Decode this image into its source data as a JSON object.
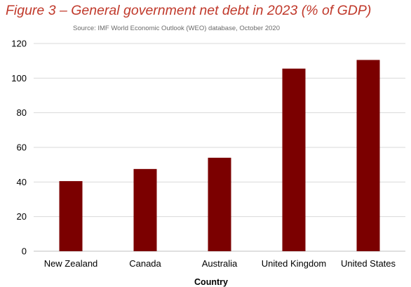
{
  "colors": {
    "title": "#c0392b",
    "bar": "#7b0000",
    "gridline": "#d9d9d9",
    "axis": "#bfbfbf"
  },
  "figure": {
    "title": "Figure 3 – General government net debt in 2023 (% of GDP)",
    "source": "Source: IMF World Economic Outlook (WEO) database, October 2020"
  },
  "chart_data": {
    "type": "bar",
    "categories": [
      "New Zealand",
      "Canada",
      "Australia",
      "United Kingdom",
      "United States"
    ],
    "values": [
      40.5,
      47.5,
      54,
      105.5,
      110.5
    ],
    "title": "Figure 3 – General government net debt in 2023 (% of GDP)",
    "subtitle": "Source: IMF World Economic Outlook (WEO) database, October 2020",
    "xlabel": "Country",
    "ylabel": "",
    "ylim": [
      0,
      120
    ],
    "yticks": [
      "0",
      "20",
      "40",
      "60",
      "80",
      "100",
      "120"
    ],
    "grid": true,
    "legend": "none"
  }
}
